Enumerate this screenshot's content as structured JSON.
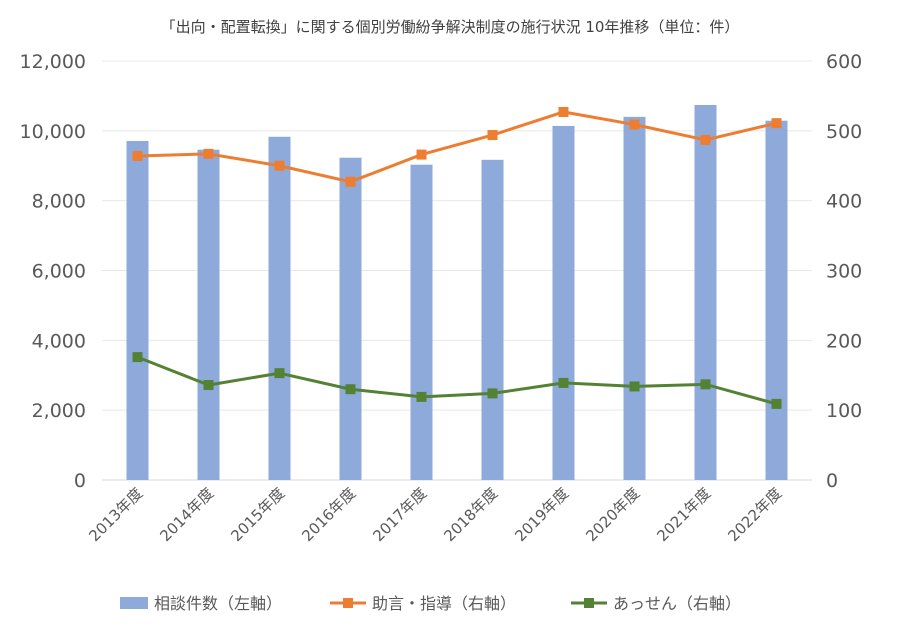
{
  "chart_data": {
    "type": "bar+line",
    "title": "「出向・配置転換」に関する個別労働紛争解決制度の施行状況 10年推移（単位：件）",
    "categories": [
      "2013年度",
      "2014年度",
      "2015年度",
      "2016年度",
      "2017年度",
      "2018年度",
      "2019年度",
      "2020年度",
      "2021年度",
      "2022年度"
    ],
    "left_axis": {
      "ylim": [
        0,
        12000
      ],
      "ticks": [
        "0",
        "2,000",
        "4,000",
        "6,000",
        "8,000",
        "10,000",
        "12,000"
      ],
      "tick_values": [
        0,
        2000,
        4000,
        6000,
        8000,
        10000,
        12000
      ]
    },
    "right_axis": {
      "ylim": [
        0,
        600
      ],
      "ticks": [
        "0",
        "100",
        "200",
        "300",
        "400",
        "500",
        "600"
      ],
      "tick_values": [
        0,
        100,
        200,
        300,
        400,
        500,
        600
      ]
    },
    "series": [
      {
        "name": "相談件数（左軸）",
        "type": "bar",
        "axis": "left",
        "color": "#8eaadb",
        "values": [
          9710,
          9460,
          9830,
          9230,
          9030,
          9170,
          10140,
          10400,
          10740,
          10290
        ]
      },
      {
        "name": "助言・指導（右軸）",
        "type": "line",
        "axis": "right",
        "color": "#ed7d31",
        "values": [
          464,
          467,
          450,
          427,
          466,
          494,
          527,
          509,
          487,
          511
        ]
      },
      {
        "name": "あっせん（右軸）",
        "type": "line",
        "axis": "right",
        "color": "#548235",
        "values": [
          176,
          136,
          153,
          130,
          119,
          124,
          139,
          134,
          137,
          109
        ]
      }
    ],
    "grid": true,
    "legend": "bottom"
  }
}
